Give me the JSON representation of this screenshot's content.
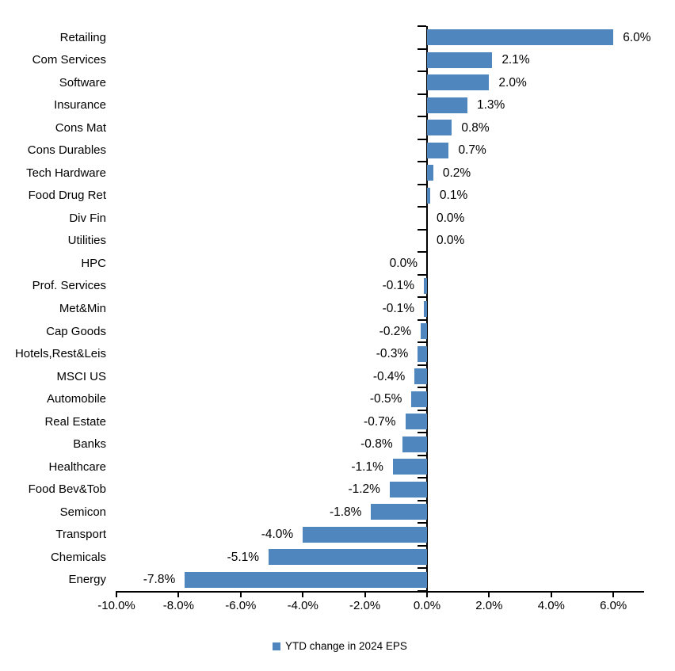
{
  "chart_data": {
    "type": "bar",
    "orientation": "horizontal",
    "title": "",
    "xlabel": "",
    "ylabel": "",
    "legend": "YTD change in 2024 EPS",
    "legend_position": "bottom-center",
    "grid": false,
    "bar_color": "#4f86be",
    "axis_color": "#000000",
    "text_color": "#000000",
    "xlim": [
      -10,
      7
    ],
    "x_ticks": [
      {
        "value": -10,
        "label": "-10.0%"
      },
      {
        "value": -8,
        "label": "-8.0%"
      },
      {
        "value": -6,
        "label": "-6.0%"
      },
      {
        "value": -4,
        "label": "-4.0%"
      },
      {
        "value": -2,
        "label": "-2.0%"
      },
      {
        "value": 0,
        "label": "0.0%"
      },
      {
        "value": 2,
        "label": "2.0%"
      },
      {
        "value": 4,
        "label": "4.0%"
      },
      {
        "value": 6,
        "label": "6.0%"
      }
    ],
    "points": [
      {
        "category": "Retailing",
        "value": 6.0,
        "label": "6.0%",
        "label_side": "right"
      },
      {
        "category": "Com Services",
        "value": 2.1,
        "label": "2.1%",
        "label_side": "right"
      },
      {
        "category": "Software",
        "value": 2.0,
        "label": "2.0%",
        "label_side": "right"
      },
      {
        "category": "Insurance",
        "value": 1.3,
        "label": "1.3%",
        "label_side": "right"
      },
      {
        "category": "Cons Mat",
        "value": 0.8,
        "label": "0.8%",
        "label_side": "right"
      },
      {
        "category": "Cons Durables",
        "value": 0.7,
        "label": "0.7%",
        "label_side": "right"
      },
      {
        "category": "Tech Hardware",
        "value": 0.2,
        "label": "0.2%",
        "label_side": "right"
      },
      {
        "category": "Food Drug Ret",
        "value": 0.1,
        "label": "0.1%",
        "label_side": "right"
      },
      {
        "category": "Div Fin",
        "value": 0.0,
        "label": "0.0%",
        "label_side": "right"
      },
      {
        "category": "Utilities",
        "value": 0.0,
        "label": "0.0%",
        "label_side": "right"
      },
      {
        "category": "HPC",
        "value": 0.0,
        "label": "0.0%",
        "label_side": "left"
      },
      {
        "category": "Prof. Services",
        "value": -0.1,
        "label": "-0.1%",
        "label_side": "left"
      },
      {
        "category": "Met&Min",
        "value": -0.1,
        "label": "-0.1%",
        "label_side": "left"
      },
      {
        "category": "Cap Goods",
        "value": -0.2,
        "label": "-0.2%",
        "label_side": "left"
      },
      {
        "category": "Hotels,Rest&Leis",
        "value": -0.3,
        "label": "-0.3%",
        "label_side": "left"
      },
      {
        "category": "MSCI US",
        "value": -0.4,
        "label": "-0.4%",
        "label_side": "left"
      },
      {
        "category": "Automobile",
        "value": -0.5,
        "label": "-0.5%",
        "label_side": "left"
      },
      {
        "category": "Real Estate",
        "value": -0.7,
        "label": "-0.7%",
        "label_side": "left"
      },
      {
        "category": "Banks",
        "value": -0.8,
        "label": "-0.8%",
        "label_side": "left"
      },
      {
        "category": "Healthcare",
        "value": -1.1,
        "label": "-1.1%",
        "label_side": "left"
      },
      {
        "category": "Food Bev&Tob",
        "value": -1.2,
        "label": "-1.2%",
        "label_side": "left"
      },
      {
        "category": "Semicon",
        "value": -1.8,
        "label": "-1.8%",
        "label_side": "left"
      },
      {
        "category": "Transport",
        "value": -4.0,
        "label": "-4.0%",
        "label_side": "left"
      },
      {
        "category": "Chemicals",
        "value": -5.1,
        "label": "-5.1%",
        "label_side": "left"
      },
      {
        "category": "Energy",
        "value": -7.8,
        "label": "-7.8%",
        "label_side": "left"
      }
    ]
  }
}
